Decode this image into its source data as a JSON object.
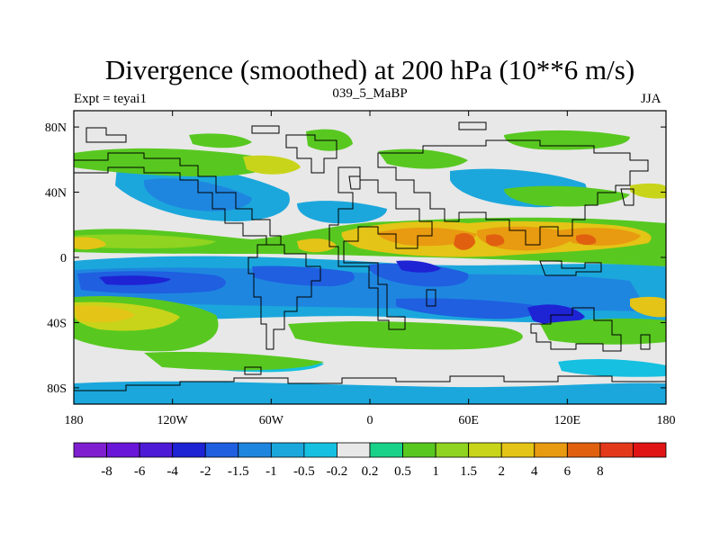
{
  "figure": {
    "title": "Divergence (smoothed) at 200 hPa (10**6 m/s)",
    "left_label": "Expt = teyai1",
    "center_label": "039_5_MaBP",
    "right_label": "JJA"
  },
  "map": {
    "lat_ticks": [
      {
        "value": 80,
        "label": "80N"
      },
      {
        "value": 40,
        "label": "40N"
      },
      {
        "value": 0,
        "label": "0"
      },
      {
        "value": -40,
        "label": "40S"
      },
      {
        "value": -80,
        "label": "80S"
      }
    ],
    "lon_ticks": [
      {
        "value": -180,
        "label": "180"
      },
      {
        "value": -120,
        "label": "120W"
      },
      {
        "value": -60,
        "label": "60W"
      },
      {
        "value": 0,
        "label": "0"
      },
      {
        "value": 60,
        "label": "60E"
      },
      {
        "value": 120,
        "label": "120E"
      },
      {
        "value": 180,
        "label": "180"
      }
    ]
  },
  "colorbar": {
    "colors": [
      "#7f1fd0",
      "#6a16d8",
      "#4d1ad6",
      "#1e23d4",
      "#1f5fe0",
      "#1f86e0",
      "#1ba7dc",
      "#16c0e0",
      "#e8e8e8",
      "#19d28a",
      "#58c820",
      "#8fd420",
      "#c8d41a",
      "#e4c416",
      "#e89a10",
      "#e06010",
      "#e4381a",
      "#e01414"
    ],
    "labels": [
      "-8",
      "-6",
      "-4",
      "-2",
      "-1.5",
      "-1",
      "-0.5",
      "-0.2",
      "0.2",
      "0.5",
      "1",
      "1.5",
      "2",
      "4",
      "6",
      "8"
    ]
  }
}
